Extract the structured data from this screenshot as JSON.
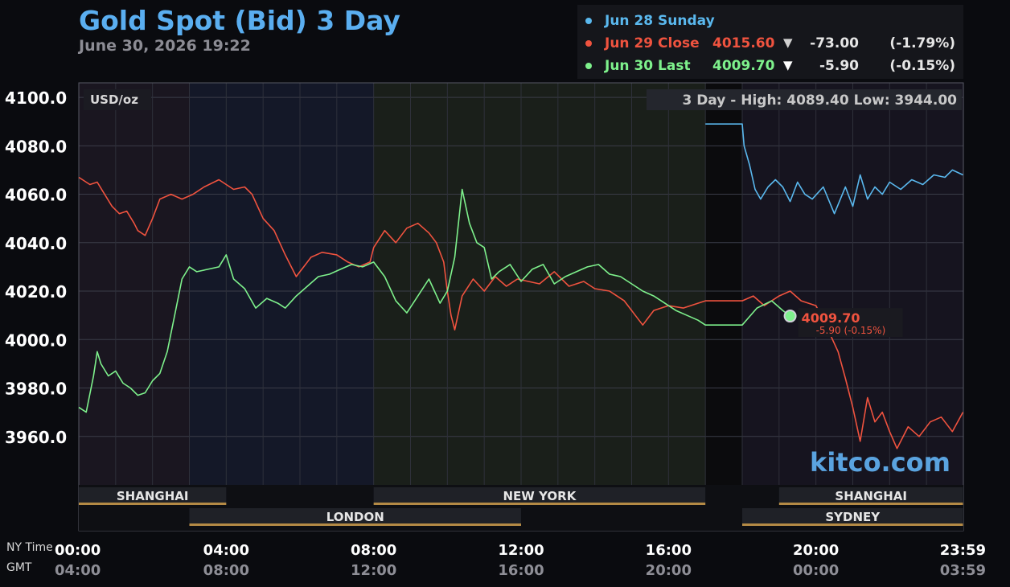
{
  "title": "Gold Spot (Bid) 3 Day",
  "subtitle": "June 30, 2026 19:22",
  "legend": [
    {
      "label": "Jun 28 Sunday",
      "value": "",
      "arrow": "",
      "change": "",
      "pct": "",
      "color": "#5ab8ee"
    },
    {
      "label": "Jun 29 Close",
      "value": "4015.60",
      "arrow": "▼",
      "change": "-73.00",
      "pct": "(-1.79%)",
      "color": "#f0533f"
    },
    {
      "label": "Jun 30 Last",
      "value": "4009.70",
      "arrow": "▼",
      "change": "-5.90",
      "pct": "(-0.15%)",
      "color": "#7ef18c"
    }
  ],
  "chart_data": {
    "type": "line",
    "unit_label": "USD/oz",
    "range_label": "3 Day - High: 4089.40  Low: 3944.00",
    "ylim": [
      3940,
      4106
    ],
    "y_ticks": [
      4100,
      4080,
      4060,
      4040,
      4020,
      4000,
      3980,
      3960
    ],
    "y_tick_labels": [
      "4100.0",
      "4080.0",
      "4060.0",
      "4040.0",
      "4020.0",
      "4000.0",
      "3980.0",
      "3960.0"
    ],
    "x_range_hours": [
      0,
      24
    ],
    "x_ticks_hours": [
      0,
      4,
      8,
      12,
      16,
      20,
      24
    ],
    "x_tick_labels_ny": [
      "00:00",
      "04:00",
      "08:00",
      "12:00",
      "16:00",
      "20:00",
      "23:59"
    ],
    "x_tick_labels_gmt": [
      "04:00",
      "08:00",
      "12:00",
      "16:00",
      "20:00",
      "00:00",
      "03:59"
    ],
    "x_axis_name_ny": "NY Time",
    "x_axis_name_gmt": "GMT",
    "grid": true,
    "series": [
      {
        "name": "Jun 28 Sunday",
        "color": "#5ab8ee",
        "x": [
          17.0,
          18.0,
          18.05,
          18.2,
          18.35,
          18.5,
          18.7,
          18.9,
          19.1,
          19.3,
          19.5,
          19.7,
          19.9,
          20.2,
          20.5,
          20.8,
          21.0,
          21.2,
          21.4,
          21.6,
          21.8,
          22.0,
          22.3,
          22.6,
          22.9,
          23.2,
          23.5,
          23.7,
          23.99
        ],
        "y": [
          4089,
          4089,
          4080,
          4072,
          4062,
          4058,
          4063,
          4066,
          4063,
          4057,
          4065,
          4060,
          4058,
          4063,
          4052,
          4063,
          4055,
          4068,
          4058,
          4063,
          4060,
          4065,
          4062,
          4066,
          4064,
          4068,
          4067,
          4070,
          4068
        ]
      },
      {
        "name": "Jun 29 Close",
        "color": "#f0533f",
        "x": [
          0,
          0.3,
          0.5,
          0.7,
          0.9,
          1.1,
          1.3,
          1.5,
          1.6,
          1.8,
          2.0,
          2.2,
          2.5,
          2.8,
          3.1,
          3.4,
          3.8,
          4.2,
          4.5,
          4.7,
          5.0,
          5.3,
          5.6,
          5.9,
          6.0,
          6.3,
          6.6,
          7.0,
          7.3,
          7.6,
          7.9,
          8.0,
          8.3,
          8.6,
          8.9,
          9.2,
          9.5,
          9.7,
          9.9,
          10.0,
          10.1,
          10.2,
          10.4,
          10.7,
          11.0,
          11.3,
          11.6,
          11.9,
          12.2,
          12.5,
          12.9,
          13.3,
          13.7,
          14.0,
          14.4,
          14.8,
          15.1,
          15.3,
          15.6,
          16.0,
          16.4,
          16.8,
          17.0,
          18.0,
          18.3,
          18.6,
          19.0,
          19.3,
          19.6,
          20.0,
          20.3,
          20.6,
          20.8,
          20.9,
          21.0,
          21.2,
          21.4,
          21.6,
          21.8,
          22.0,
          22.2,
          22.5,
          22.8,
          23.1,
          23.4,
          23.7,
          23.99
        ],
        "y": [
          4067,
          4064,
          4065,
          4060,
          4055,
          4052,
          4053,
          4048,
          4045,
          4043,
          4050,
          4058,
          4060,
          4058,
          4060,
          4063,
          4066,
          4062,
          4063,
          4060,
          4050,
          4045,
          4035,
          4026,
          4028,
          4034,
          4036,
          4035,
          4032,
          4030,
          4032,
          4038,
          4045,
          4040,
          4046,
          4048,
          4044,
          4040,
          4032,
          4020,
          4010,
          4004,
          4018,
          4025,
          4020,
          4026,
          4022,
          4025,
          4024,
          4023,
          4028,
          4022,
          4024,
          4021,
          4020,
          4016,
          4010,
          4006,
          4012,
          4014,
          4013,
          4015,
          4016,
          4016,
          4018,
          4014,
          4018,
          4020,
          4016,
          4014,
          4005,
          3995,
          3984,
          3978,
          3972,
          3958,
          3976,
          3966,
          3970,
          3962,
          3955,
          3964,
          3960,
          3966,
          3968,
          3962,
          3970
        ]
      },
      {
        "name": "Jun 30 Last",
        "color": "#7ef18c",
        "x": [
          0,
          0.2,
          0.4,
          0.5,
          0.6,
          0.8,
          1.0,
          1.2,
          1.4,
          1.6,
          1.8,
          2.0,
          2.2,
          2.4,
          2.6,
          2.8,
          3.0,
          3.2,
          3.5,
          3.8,
          4.0,
          4.2,
          4.5,
          4.8,
          5.1,
          5.4,
          5.6,
          5.9,
          6.2,
          6.5,
          6.8,
          7.1,
          7.4,
          7.7,
          8.0,
          8.3,
          8.6,
          8.9,
          9.2,
          9.5,
          9.8,
          10.0,
          10.2,
          10.4,
          10.6,
          10.8,
          11.0,
          11.2,
          11.4,
          11.7,
          12.0,
          12.3,
          12.6,
          12.9,
          13.2,
          13.5,
          13.8,
          14.1,
          14.4,
          14.7,
          15.0,
          15.3,
          15.6,
          15.9,
          16.2,
          16.5,
          16.8,
          17.0,
          18.0,
          18.4,
          18.8,
          19.1,
          19.3
        ],
        "y": [
          3972,
          3970,
          3985,
          3995,
          3990,
          3985,
          3987,
          3982,
          3980,
          3977,
          3978,
          3983,
          3986,
          3995,
          4010,
          4025,
          4030,
          4028,
          4029,
          4030,
          4035,
          4025,
          4021,
          4013,
          4017,
          4015,
          4013,
          4018,
          4022,
          4026,
          4027,
          4029,
          4031,
          4030,
          4032,
          4026,
          4016,
          4011,
          4018,
          4025,
          4015,
          4020,
          4034,
          4062,
          4048,
          4040,
          4038,
          4025,
          4028,
          4031,
          4024,
          4029,
          4031,
          4023,
          4026,
          4028,
          4030,
          4031,
          4027,
          4026,
          4023,
          4020,
          4018,
          4015,
          4012,
          4010,
          4008,
          4006,
          4006,
          4013,
          4016,
          4012,
          4009.7
        ]
      }
    ],
    "last_point": {
      "x": 19.3,
      "y": 4009.7,
      "value_label": "4009.70",
      "change_label": "-5.90 (-0.15%)"
    },
    "sessions": [
      {
        "name": "SHANGHAI",
        "start": 0,
        "end": 4.0,
        "row": 1
      },
      {
        "name": "NEW YORK",
        "start": 8.0,
        "end": 17.0,
        "row": 1
      },
      {
        "name": "SHANGHAI",
        "start": 19.0,
        "end": 23.99,
        "row": 1
      },
      {
        "name": "LONDON",
        "start": 3.0,
        "end": 12.0,
        "row": 2
      },
      {
        "name": "SYDNEY",
        "start": 18.0,
        "end": 23.99,
        "row": 2
      }
    ],
    "watermark": "kitco.com"
  }
}
